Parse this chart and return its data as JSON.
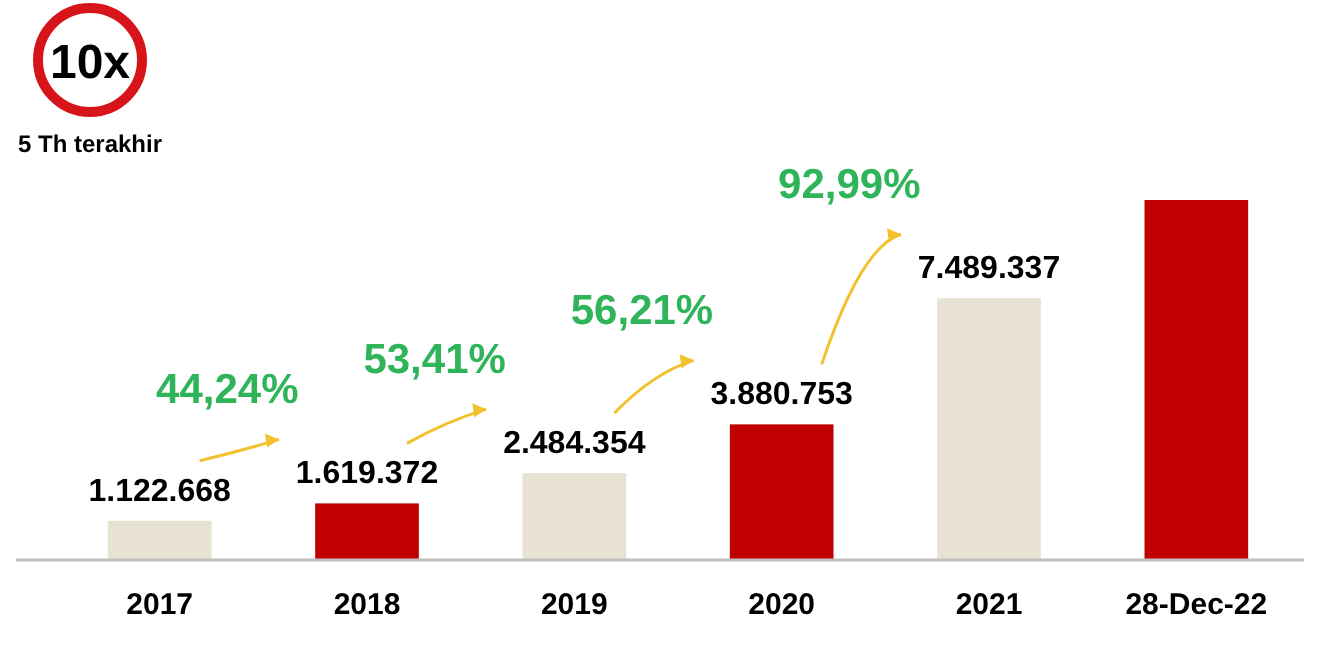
{
  "chart_data": {
    "type": "bar",
    "categories": [
      "2017",
      "2018",
      "2019",
      "2020",
      "2021",
      "28-Dec-22"
    ],
    "values": [
      1122668,
      1619372,
      2484354,
      3880753,
      7489337,
      10300000
    ],
    "value_labels": [
      "1.122.668",
      "1.619.372",
      "2.484.354",
      "3.880.753",
      "7.489.337",
      null
    ],
    "colors": [
      "#e8e2d3",
      "#c00000",
      "#e8e2d3",
      "#c00000",
      "#e8e2d3",
      "#c00000"
    ],
    "ylim": [
      0,
      10300000
    ],
    "annotations": [
      "10x",
      "5 Th terakhir",
      "44,24%",
      "53,41%",
      "56,21%",
      "92,99%"
    ]
  }
}
